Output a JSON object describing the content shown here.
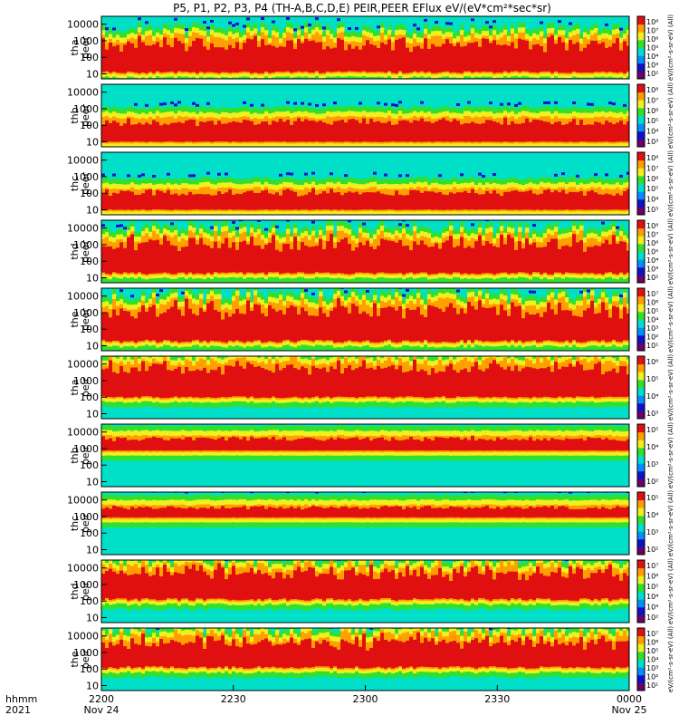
{
  "chart_data": {
    "type": "heatmap",
    "title": "P5, P1, P2, P3, P4 (TH-A,B,C,D,E) PEIR,PEER EFlux eV/(eV*cm²*sec*sr)",
    "x_axis": {
      "corner_label_top": "hhmm",
      "corner_label_bottom": "2021",
      "ticks": [
        {
          "label": "2200",
          "sublabel": "Nov 24",
          "minute": 0
        },
        {
          "label": "2230",
          "sublabel": "",
          "minute": 30
        },
        {
          "label": "2300",
          "sublabel": "",
          "minute": 60
        },
        {
          "label": "2330",
          "sublabel": "",
          "minute": 90
        },
        {
          "label": "0000",
          "sublabel": "Nov 25",
          "minute": 120
        }
      ],
      "range_minutes": [
        0,
        120
      ]
    },
    "y_axis": {
      "scale": "log",
      "range_eV": [
        5,
        30000
      ],
      "tick_labels": [
        "10000",
        "1000",
        "100",
        "10"
      ],
      "tick_values": [
        10000,
        1000,
        100,
        10
      ]
    },
    "panels": [
      {
        "id": "tha-peer",
        "label_1": "tha",
        "label_2": "peer",
        "colorbar_ticks": [
          "10⁸",
          "10⁷",
          "10⁶",
          "10⁵",
          "10⁴",
          "10³",
          "10²"
        ],
        "colorbar_label": "eV/(cm²-s-sr-eV) (All)",
        "band_low_eV": 10,
        "band_high_eV": 1500,
        "variability": 0.7
      },
      {
        "id": "thb-peer",
        "label_1": "thb",
        "label_2": "peer",
        "colorbar_ticks": [
          "10⁸",
          "10⁷",
          "10⁶",
          "10⁵",
          "10⁴",
          "10³"
        ],
        "colorbar_label": "eV/(cm²-s-sr-eV) (All)",
        "band_low_eV": 8,
        "band_high_eV": 300,
        "variability": 0.2
      },
      {
        "id": "thc-peer",
        "label_1": "thc",
        "label_2": "peer",
        "colorbar_ticks": [
          "10⁸",
          "10⁷",
          "10⁶",
          "10⁵",
          "10⁴",
          "10³"
        ],
        "colorbar_label": "eV/(cm²-s-sr-eV) (All)",
        "band_low_eV": 8,
        "band_high_eV": 200,
        "variability": 0.2
      },
      {
        "id": "thd-peer",
        "label_1": "thd",
        "label_2": "peer",
        "colorbar_ticks": [
          "10⁸",
          "10⁷",
          "10⁶",
          "10⁵",
          "10⁴",
          "10³",
          "10²"
        ],
        "colorbar_label": "eV/(cm²-s-sr-eV) (All)",
        "band_low_eV": 15,
        "band_high_eV": 3000,
        "variability": 0.8
      },
      {
        "id": "the-peer",
        "label_1": "the",
        "label_2": "peer",
        "colorbar_ticks": [
          "10⁷",
          "10⁶",
          "10⁵",
          "10⁴",
          "10³",
          "10²",
          "10¹"
        ],
        "colorbar_label": "eV/(cm²-s-sr-eV) (All)",
        "band_low_eV": 15,
        "band_high_eV": 4000,
        "variability": 0.9
      },
      {
        "id": "tha-peir",
        "label_1": "tha",
        "label_2": "peir",
        "colorbar_ticks": [
          "10⁶",
          "10⁵",
          "10⁴",
          "10³"
        ],
        "colorbar_label": "eV/(cm²-s-sr-eV) (All)",
        "band_low_eV": 80,
        "band_high_eV": 15000,
        "variability": 0.6
      },
      {
        "id": "thb-peir",
        "label_1": "thb",
        "label_2": "peir",
        "colorbar_ticks": [
          "10⁵",
          "10⁴",
          "10³",
          "10²"
        ],
        "colorbar_label": "eV/(cm²-s-sr-eV) (All)",
        "band_low_eV": 600,
        "band_high_eV": 6000,
        "variability": 0.1
      },
      {
        "id": "thc-peir",
        "label_1": "thc",
        "label_2": "peir",
        "colorbar_ticks": [
          "10⁵",
          "10⁴",
          "10³",
          "10²"
        ],
        "colorbar_label": "eV/(cm²-s-sr-eV) (All)",
        "band_low_eV": 700,
        "band_high_eV": 5000,
        "variability": 0.1
      },
      {
        "id": "thd-peir",
        "label_1": "thd",
        "label_2": "peir",
        "colorbar_ticks": [
          "10⁷",
          "10⁶",
          "10⁵",
          "10⁴",
          "10³",
          "10²"
        ],
        "colorbar_label": "eV/(cm²-s-sr-eV) (All)",
        "band_low_eV": 100,
        "band_high_eV": 12000,
        "variability": 0.8
      },
      {
        "id": "the-peir",
        "label_1": "the",
        "label_2": "peir",
        "colorbar_ticks": [
          "10⁷",
          "10⁶",
          "10⁵",
          "10⁴",
          "10³",
          "10²",
          "10¹"
        ],
        "colorbar_label": "eV/(cm²-s-sr-eV) (All)",
        "band_low_eV": 100,
        "band_high_eV": 10000,
        "variability": 0.8
      }
    ],
    "colormap": [
      "#6a006a",
      "#1010c8",
      "#0090ff",
      "#00e0c8",
      "#30e030",
      "#f0f020",
      "#ffa000",
      "#e01010"
    ]
  }
}
